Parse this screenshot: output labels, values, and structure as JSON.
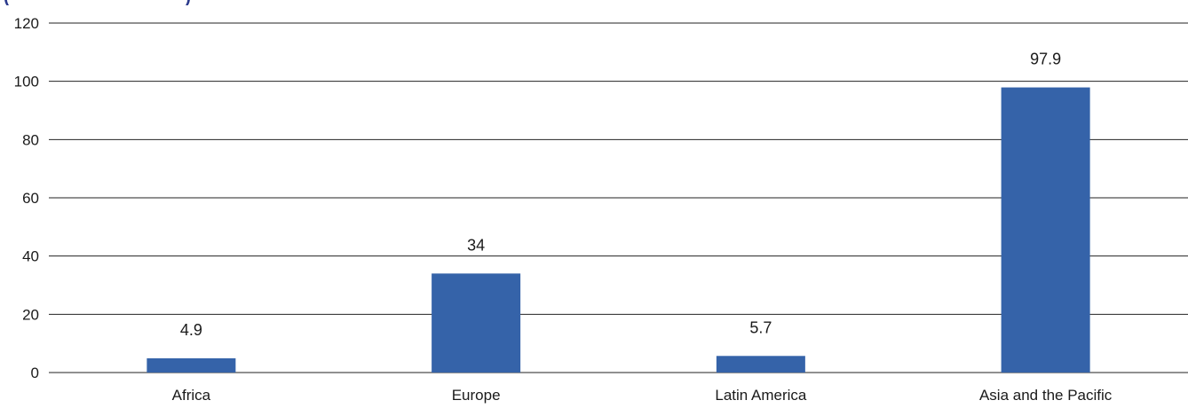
{
  "chart_data": {
    "type": "bar",
    "title": "",
    "xlabel": "",
    "ylabel": "",
    "categories": [
      "Africa",
      "Europe",
      "Latin America",
      "Asia and the Pacific"
    ],
    "values": [
      4.9,
      34,
      5.7,
      97.9
    ],
    "data_labels": [
      "4.9",
      "34",
      "5.7",
      "97.9"
    ],
    "ylim": [
      0,
      120
    ],
    "yticks": [
      0,
      20,
      40,
      60,
      80,
      100,
      120
    ],
    "grid": true,
    "legend": "none",
    "bar_color": "#3563a9",
    "gridline_color": "#222222",
    "text_color": "#1a1a1a"
  },
  "partial_title_text": "(                              )"
}
